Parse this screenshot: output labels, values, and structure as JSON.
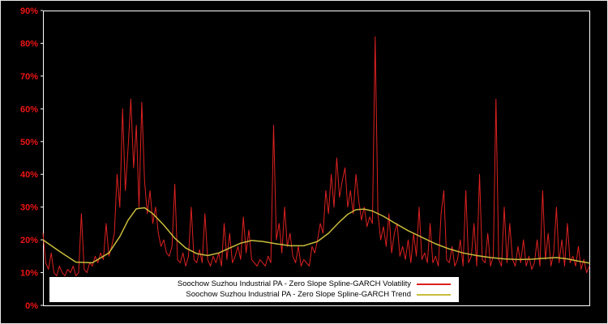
{
  "chart_data": {
    "type": "line",
    "title": "",
    "background_color": "#000000",
    "frame_color": "#ffffff",
    "tick_label_color": "#ee1414",
    "legend_background": "#ffffff",
    "legend_position": "bottom-center-inside",
    "grid": false,
    "ylim": [
      0,
      90
    ],
    "yticks": [
      0,
      10,
      20,
      30,
      40,
      50,
      60,
      70,
      80,
      90
    ],
    "ytick_labels": [
      "0%",
      "10%",
      "20%",
      "30%",
      "40%",
      "50%",
      "60%",
      "70%",
      "80%",
      "90%"
    ],
    "x_range": [
      0,
      199
    ],
    "xtick_labels": [],
    "series": [
      {
        "name": "Soochow Suzhou Industrial PA - Zero Slope Spline-GARCH Volatility",
        "color": "#dd2121",
        "line_style": "spiky",
        "values": [
          22,
          13,
          11,
          16,
          10,
          9,
          12,
          10,
          9,
          11,
          10,
          12,
          9,
          10,
          28,
          11,
          10,
          13,
          12,
          15,
          13,
          16,
          14,
          25,
          15,
          18,
          22,
          40,
          30,
          60,
          35,
          48,
          63,
          42,
          55,
          30,
          62,
          38,
          28,
          35,
          25,
          30,
          22,
          18,
          20,
          16,
          15,
          18,
          37,
          14,
          13,
          16,
          12,
          15,
          30,
          14,
          13,
          17,
          13,
          28,
          14,
          12,
          15,
          13,
          16,
          12,
          25,
          14,
          22,
          13,
          15,
          18,
          14,
          27,
          16,
          23,
          14,
          13,
          12,
          14,
          13,
          12,
          15,
          13,
          55,
          20,
          25,
          16,
          30,
          18,
          22,
          15,
          13,
          18,
          12,
          14,
          13,
          12,
          18,
          16,
          20,
          25,
          22,
          35,
          28,
          40,
          30,
          45,
          33,
          38,
          42,
          30,
          35,
          28,
          40,
          32,
          26,
          30,
          24,
          27,
          25,
          82,
          28,
          20,
          24,
          18,
          28,
          16,
          22,
          25,
          15,
          18,
          14,
          20,
          13,
          22,
          15,
          30,
          14,
          16,
          13,
          25,
          13,
          15,
          12,
          28,
          35,
          14,
          13,
          18,
          12,
          14,
          20,
          12,
          35,
          13,
          15,
          25,
          12,
          40,
          14,
          13,
          22,
          12,
          15,
          63,
          14,
          12,
          30,
          13,
          25,
          14,
          12,
          18,
          13,
          20,
          12,
          15,
          11,
          13,
          20,
          12,
          35,
          14,
          22,
          12,
          16,
          30,
          13,
          20,
          12,
          25,
          13,
          15,
          12,
          18,
          11,
          14,
          10,
          12
        ]
      },
      {
        "name": "Soochow Suzhou Industrial PA - Zero Slope Spline-GARCH Trend",
        "color": "#c9bc3c",
        "line_style": "smooth",
        "points": [
          [
            0,
            20
          ],
          [
            6,
            16.5
          ],
          [
            12,
            13.2
          ],
          [
            18,
            13
          ],
          [
            24,
            16
          ],
          [
            28,
            21
          ],
          [
            31,
            26
          ],
          [
            34,
            29.5
          ],
          [
            37,
            29.8
          ],
          [
            40,
            28
          ],
          [
            44,
            24.5
          ],
          [
            48,
            20.5
          ],
          [
            52,
            17.5
          ],
          [
            56,
            15.8
          ],
          [
            60,
            15.2
          ],
          [
            64,
            16
          ],
          [
            68,
            17.5
          ],
          [
            72,
            19
          ],
          [
            76,
            19.8
          ],
          [
            80,
            19.5
          ],
          [
            85,
            18.8
          ],
          [
            90,
            18.2
          ],
          [
            95,
            18.2
          ],
          [
            100,
            19.5
          ],
          [
            104,
            22
          ],
          [
            108,
            25.5
          ],
          [
            111,
            27.8
          ],
          [
            114,
            29.2
          ],
          [
            117,
            29.4
          ],
          [
            120,
            28.8
          ],
          [
            124,
            27.2
          ],
          [
            128,
            25.2
          ],
          [
            133,
            22.8
          ],
          [
            138,
            20.8
          ],
          [
            143,
            18.8
          ],
          [
            148,
            17.2
          ],
          [
            153,
            16
          ],
          [
            158,
            15.2
          ],
          [
            163,
            14.6
          ],
          [
            168,
            14.2
          ],
          [
            173,
            14
          ],
          [
            178,
            14.1
          ],
          [
            183,
            14.4
          ],
          [
            187,
            14.6
          ],
          [
            191,
            14.2
          ],
          [
            195,
            13.5
          ],
          [
            199,
            12.9
          ]
        ]
      }
    ]
  }
}
